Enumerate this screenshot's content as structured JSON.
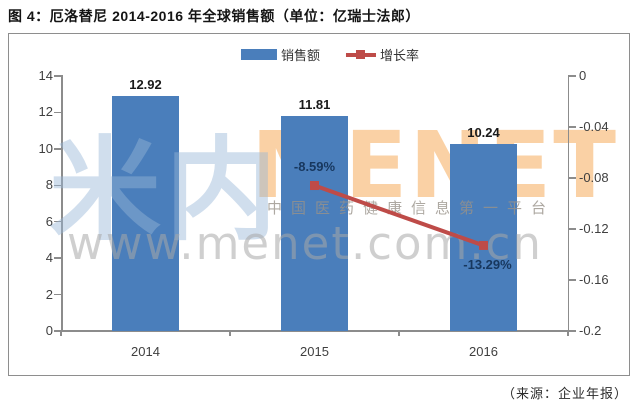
{
  "figure": {
    "title": "图 4：厄洛替尼 2014-2016 年全球销售额（单位：亿瑞士法郎）",
    "source": "（来源：企业年报）"
  },
  "watermark": {
    "logo_cn": "米内",
    "logo_en": "MENET",
    "slogan": "中国医药健康信息第一平台",
    "url": "www.menet.com.cn"
  },
  "chart_data": {
    "type": "bar",
    "categories": [
      "2014",
      "2015",
      "2016"
    ],
    "series": [
      {
        "name": "销售额",
        "type": "bar",
        "axis": "left",
        "color": "#4a7ebb",
        "values": [
          12.92,
          11.81,
          10.24
        ],
        "labels": [
          "12.92",
          "11.81",
          "10.24"
        ]
      },
      {
        "name": "增长率",
        "type": "line",
        "axis": "right",
        "color": "#be4b48",
        "values": [
          null,
          -0.0859,
          -0.1329
        ],
        "labels": [
          null,
          "-8.59%",
          "-13.29%"
        ]
      }
    ],
    "left_axis": {
      "min": 0,
      "max": 14,
      "ticks": [
        14,
        12,
        10,
        8,
        6,
        4,
        2,
        0
      ]
    },
    "right_axis": {
      "min": -0.2,
      "max": 0,
      "ticks": [
        0,
        -0.04,
        -0.08,
        -0.12,
        -0.16,
        -0.2
      ],
      "tick_labels": [
        "0",
        "-0.04",
        "-0.08",
        "-0.12",
        "-0.16",
        "-0.2"
      ]
    },
    "grid": false,
    "legend_position": "top-center"
  }
}
